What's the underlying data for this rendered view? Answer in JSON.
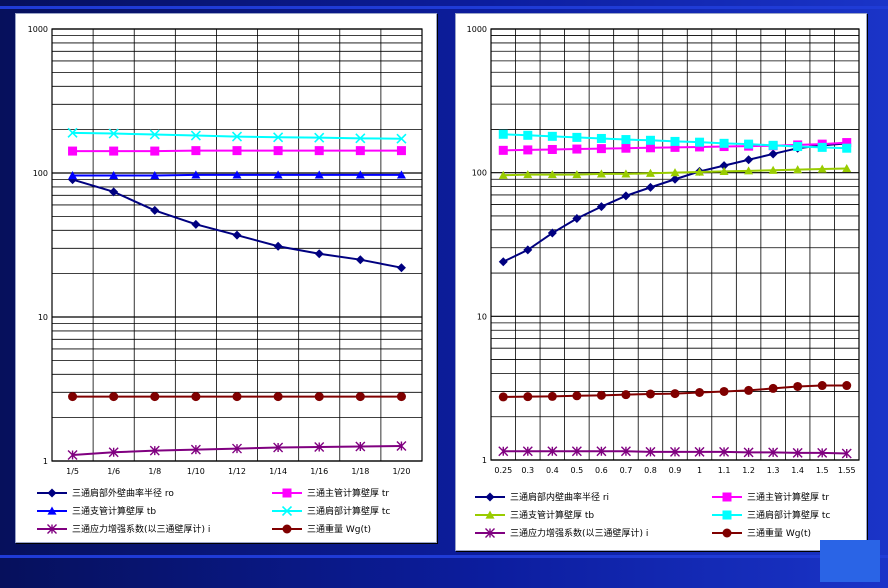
{
  "chart_data": [
    {
      "type": "line",
      "yscale": "log",
      "ylim": [
        1,
        1000
      ],
      "yticks": [
        "1",
        "10",
        "100",
        "1000"
      ],
      "grid": true,
      "legend_position": "bottom",
      "categories": [
        "1/5",
        "1/6",
        "1/8",
        "1/10",
        "1/12",
        "1/14",
        "1/16",
        "1/18",
        "1/20"
      ],
      "series": [
        {
          "name": "三通肩部外壁曲率半径 ro",
          "color": "#000080",
          "marker": "diamond",
          "values": [
            90,
            74,
            55,
            44,
            37,
            31,
            27.5,
            25,
            22
          ]
        },
        {
          "name": "三通主管计算壁厚 tr",
          "color": "#ff00ff",
          "marker": "square",
          "values": [
            142,
            142,
            142,
            143,
            143,
            143,
            143,
            143,
            143
          ]
        },
        {
          "name": "三通支管计算壁厚 tb",
          "color": "#0000ff",
          "marker": "triangle",
          "values": [
            96,
            96,
            96,
            97,
            97,
            97,
            97,
            97,
            97
          ]
        },
        {
          "name": "三通肩部计算壁厚 tc",
          "color": "#00ffff",
          "marker": "x",
          "values": [
            190,
            188,
            185,
            182,
            179,
            177,
            176,
            174,
            173
          ]
        },
        {
          "name": "三通应力增强系数(以三通壁厚计) i",
          "color": "#800080",
          "marker": "star",
          "values": [
            1.1,
            1.15,
            1.18,
            1.2,
            1.22,
            1.24,
            1.25,
            1.26,
            1.27
          ]
        },
        {
          "name": "三通重量 Wg(t)",
          "color": "#800000",
          "marker": "circle",
          "values": [
            2.8,
            2.8,
            2.8,
            2.8,
            2.8,
            2.8,
            2.8,
            2.8,
            2.8
          ]
        }
      ]
    },
    {
      "type": "line",
      "yscale": "log",
      "ylim": [
        1,
        1000
      ],
      "yticks": [
        "1",
        "10",
        "100",
        "1000"
      ],
      "grid": true,
      "legend_position": "bottom",
      "categories": [
        "0.25",
        "0.3",
        "0.4",
        "0.5",
        "0.6",
        "0.7",
        "0.8",
        "0.9",
        "1",
        "1.1",
        "1.2",
        "1.3",
        "1.4",
        "1.5",
        "1.55"
      ],
      "series": [
        {
          "name": "三通肩部内壁曲率半径 ri",
          "color": "#000080",
          "marker": "diamond",
          "values": [
            24,
            29,
            38,
            48,
            58,
            69,
            79,
            90,
            102,
            112,
            123,
            135,
            148,
            155,
            160
          ]
        },
        {
          "name": "三通主管计算壁厚 tr",
          "color": "#ff00ff",
          "marker": "square",
          "values": [
            143,
            144,
            145,
            146,
            147,
            148,
            149,
            150,
            151,
            152,
            153,
            154,
            156,
            158,
            162
          ]
        },
        {
          "name": "三通支管计算壁厚 tb",
          "color": "#99cc00",
          "marker": "triangle",
          "values": [
            96,
            97,
            97,
            97,
            98,
            98,
            99,
            100,
            101,
            102,
            103,
            104,
            105,
            106,
            107
          ]
        },
        {
          "name": "三通肩部计算壁厚 tc",
          "color": "#00ffff",
          "marker": "square",
          "values": [
            185,
            182,
            179,
            176,
            173,
            170,
            168,
            165,
            163,
            160,
            158,
            155,
            152,
            150,
            148
          ]
        },
        {
          "name": "三通应力增强系数(以三通壁厚计) i",
          "color": "#800080",
          "marker": "star",
          "values": [
            1.15,
            1.15,
            1.15,
            1.15,
            1.15,
            1.15,
            1.14,
            1.14,
            1.14,
            1.14,
            1.13,
            1.13,
            1.12,
            1.12,
            1.11
          ]
        },
        {
          "name": "三通重量 Wg(t)",
          "color": "#800000",
          "marker": "circle",
          "values": [
            2.75,
            2.76,
            2.77,
            2.8,
            2.82,
            2.85,
            2.88,
            2.9,
            2.95,
            3.0,
            3.05,
            3.15,
            3.25,
            3.3,
            3.3
          ]
        }
      ]
    }
  ]
}
